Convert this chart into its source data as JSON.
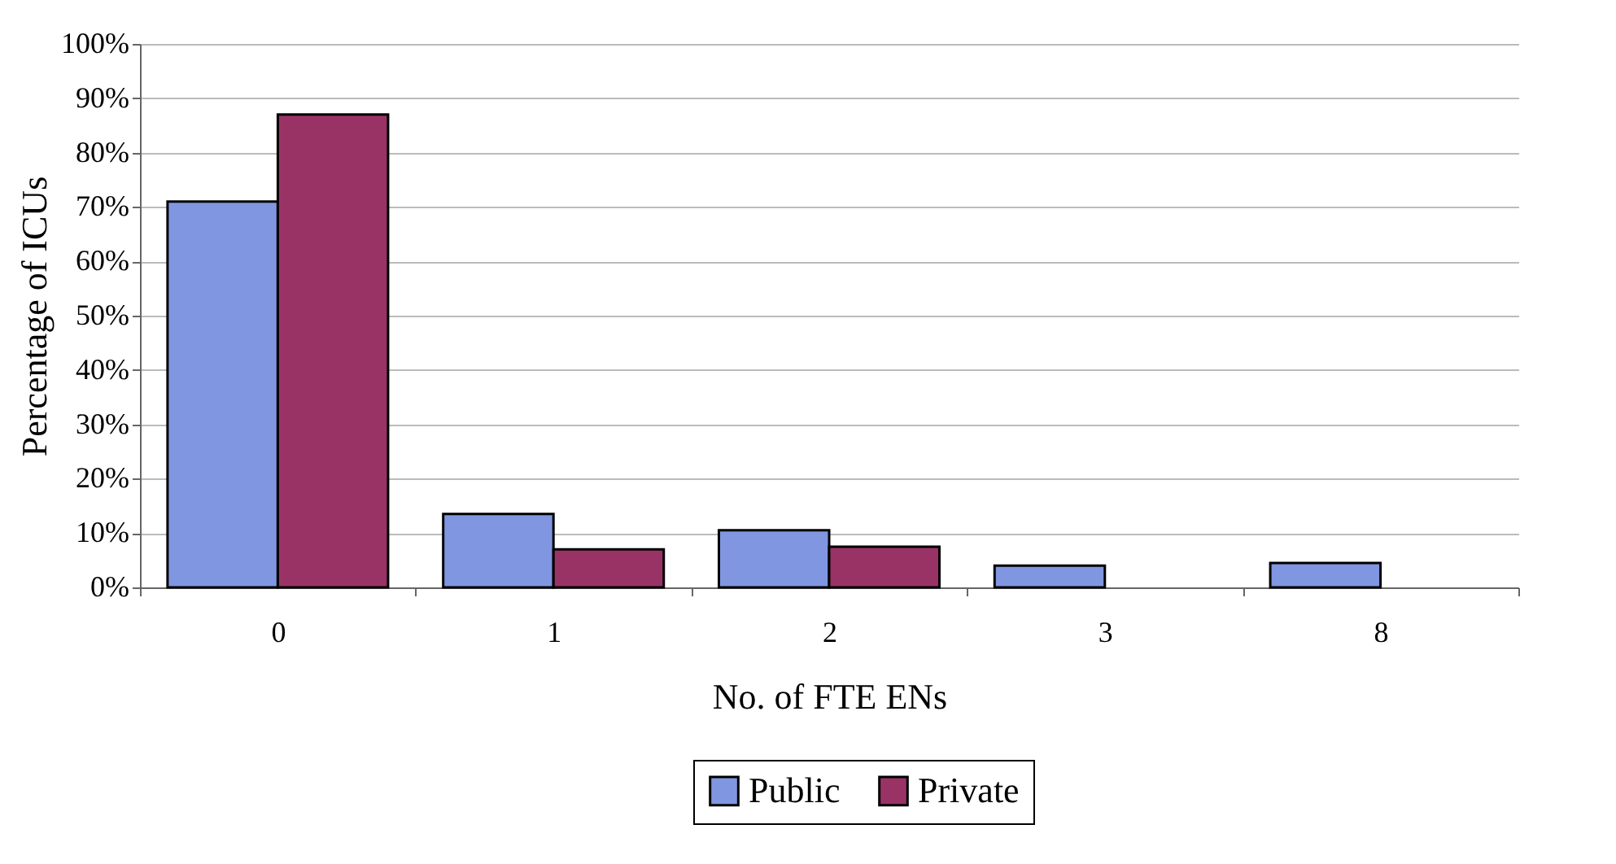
{
  "chart_data": {
    "type": "bar",
    "xlabel": "No. of FTE ENs",
    "ylabel": "Percentage of ICUs",
    "categories": [
      "0",
      "1",
      "2",
      "3",
      "8"
    ],
    "series": [
      {
        "name": "Public",
        "color": "#8096e0",
        "values": [
          71,
          13.5,
          10.5,
          4,
          4.5
        ]
      },
      {
        "name": "Private",
        "color": "#993366",
        "values": [
          87,
          7,
          7.5,
          null,
          null
        ]
      }
    ],
    "ylim": [
      0,
      100
    ],
    "yticks": [
      {
        "value": 0,
        "label": "0%"
      },
      {
        "value": 10,
        "label": "10%"
      },
      {
        "value": 20,
        "label": "20%"
      },
      {
        "value": 30,
        "label": "30%"
      },
      {
        "value": 40,
        "label": "40%"
      },
      {
        "value": 50,
        "label": "50%"
      },
      {
        "value": 60,
        "label": "60%"
      },
      {
        "value": 70,
        "label": "70%"
      },
      {
        "value": 80,
        "label": "80%"
      },
      {
        "value": 90,
        "label": "90%"
      },
      {
        "value": 100,
        "label": "100%"
      }
    ],
    "grid": "y",
    "legend": "bottom"
  }
}
